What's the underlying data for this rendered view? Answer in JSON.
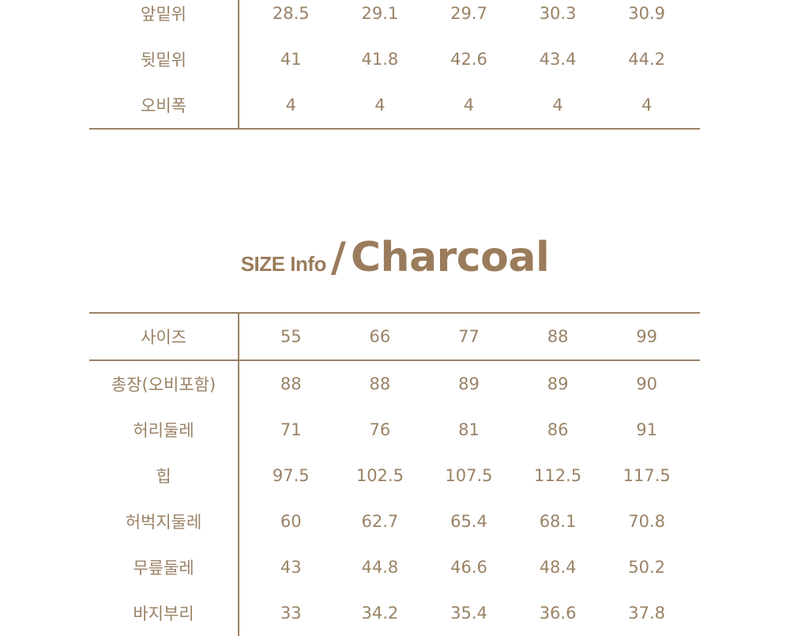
{
  "top_table": {
    "rows": [
      {
        "label": "앞밑위",
        "values": [
          "28.5",
          "29.1",
          "29.7",
          "30.3",
          "30.9"
        ]
      },
      {
        "label": "뒷밑위",
        "values": [
          "41",
          "41.8",
          "42.6",
          "43.4",
          "44.2"
        ]
      },
      {
        "label": "오비폭",
        "values": [
          "4",
          "4",
          "4",
          "4",
          "4"
        ]
      }
    ]
  },
  "title": {
    "small": "SIZE Info",
    "slash": "/",
    "big": "Charcoal"
  },
  "bottom_table": {
    "header": {
      "label": "사이즈",
      "values": [
        "55",
        "66",
        "77",
        "88",
        "99"
      ]
    },
    "rows": [
      {
        "label": "총장(오비포함)",
        "values": [
          "88",
          "88",
          "89",
          "89",
          "90"
        ]
      },
      {
        "label": "허리둘레",
        "values": [
          "71",
          "76",
          "81",
          "86",
          "91"
        ]
      },
      {
        "label": "힙",
        "values": [
          "97.5",
          "102.5",
          "107.5",
          "112.5",
          "117.5"
        ]
      },
      {
        "label": "허벅지둘레",
        "values": [
          "60",
          "62.7",
          "65.4",
          "68.1",
          "70.8"
        ]
      },
      {
        "label": "무릎둘레",
        "values": [
          "43",
          "44.8",
          "46.6",
          "48.4",
          "50.2"
        ]
      },
      {
        "label": "바지부리",
        "values": [
          "33",
          "34.2",
          "35.4",
          "36.6",
          "37.8"
        ]
      }
    ]
  }
}
